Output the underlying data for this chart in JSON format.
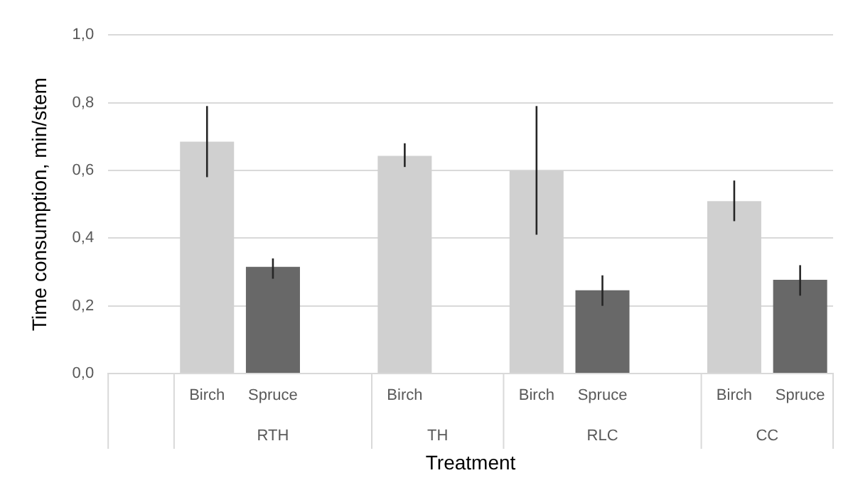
{
  "chart_data": {
    "type": "bar",
    "xlabel": "Treatment",
    "ylabel": "Time consumption, min/stem",
    "categories": [
      null,
      "Birch",
      "Spruce",
      null,
      "Birch",
      null,
      "Birch",
      "Spruce",
      null,
      "Birch",
      "Spruce"
    ],
    "values": [
      null,
      0.685,
      0.315,
      null,
      0.643,
      null,
      0.599,
      0.246,
      null,
      0.509,
      0.277
    ],
    "colors": [
      "#d0d0d0",
      "#d0d0d0",
      "#686868",
      "#d0d0d0",
      "#d0d0d0",
      "#d0d0d0",
      "#d0d0d0",
      "#686868",
      "#d0d0d0",
      "#d0d0d0",
      "#686868"
    ],
    "errors": [
      null,
      [
        0.58,
        0.79
      ],
      [
        0.28,
        0.34
      ],
      null,
      [
        0.61,
        0.68
      ],
      null,
      [
        0.41,
        0.79
      ],
      [
        0.2,
        0.29
      ],
      null,
      [
        0.45,
        0.57
      ],
      [
        0.23,
        0.32
      ]
    ],
    "annotations": [
      "RTH",
      "TH",
      "RLC",
      "CC"
    ],
    "ylim": [
      0,
      1
    ],
    "yticks": [
      {
        "value": 0,
        "label": "0,0"
      },
      {
        "value": 0.2,
        "label": "0,2"
      },
      {
        "value": 0.4,
        "label": "0,4"
      },
      {
        "value": 0.6,
        "label": "0,6"
      },
      {
        "value": 0.8,
        "label": "0,8"
      },
      {
        "value": 1,
        "label": "1,0"
      }
    ],
    "grid": "y",
    "legend": false
  }
}
